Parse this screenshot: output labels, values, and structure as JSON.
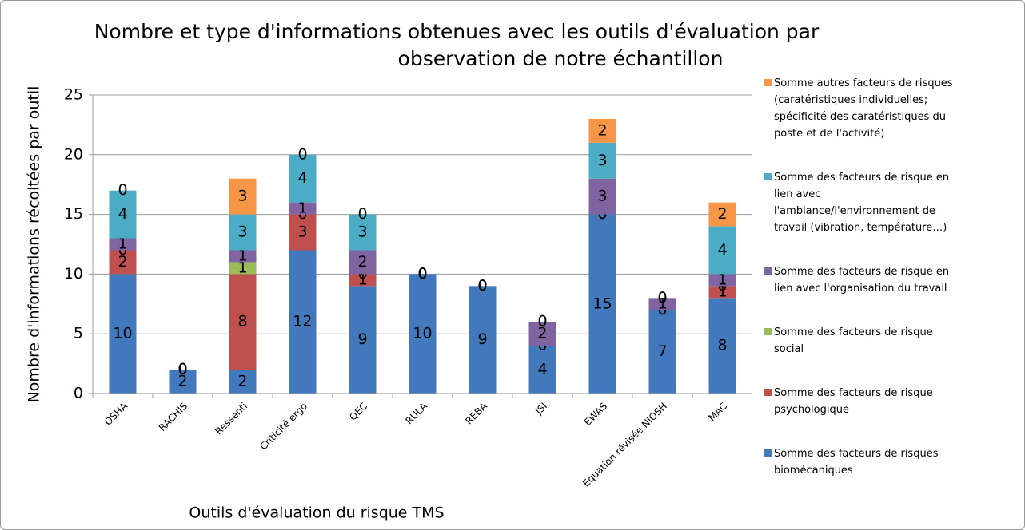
{
  "chart_data": {
    "type": "stacked_bar",
    "title": [
      "Nombre et type d'informations obtenues avec les outils d'évaluation par",
      "observation de notre échantillon"
    ],
    "x_label": "Outils d'évaluation du risque TMS",
    "y_label": "Nombre d'informations récoltées par outil",
    "categories": [
      "OSHA",
      "RACHIS",
      "Ressenti",
      "Criticité ergo",
      "QEC",
      "RULA",
      "REBA",
      "JSI",
      "EWAS",
      "Equation révisée NIOSH",
      "MAC"
    ],
    "series": [
      {
        "name": "Somme des facteurs de risques biomécaniques",
        "color": "#4279bd",
        "values": [
          10,
          2,
          2,
          12,
          9,
          10,
          9,
          4,
          15,
          7,
          8
        ]
      },
      {
        "name": "Somme des facteurs de risque psychologique",
        "color": "#c0504d",
        "values": [
          2,
          0,
          8,
          3,
          1,
          0,
          0,
          0,
          0,
          0,
          1
        ]
      },
      {
        "name": "Somme des facteurs de risque social",
        "color": "#9bbb59",
        "values": [
          0,
          0,
          1,
          0,
          0,
          0,
          0,
          0,
          0,
          0,
          0
        ]
      },
      {
        "name": "Somme des facteurs de risque en lien avec l'organisation du travail",
        "color": "#8064a2",
        "values": [
          1,
          0,
          1,
          1,
          2,
          0,
          0,
          2,
          3,
          1,
          1
        ]
      },
      {
        "name": "Somme des facteurs de risque en lien avec l'ambiance/l'environnement de travail (vibration, température…)",
        "color": "#4bacc6",
        "values": [
          4,
          0,
          3,
          4,
          3,
          0,
          0,
          0,
          3,
          0,
          4
        ]
      },
      {
        "name": "Somme autres facteurs de risques (caratéristiques individuelles; spécificité des caratéristiques du poste et de l'activité)",
        "color": "#f79646",
        "values": [
          0,
          0,
          3,
          0,
          0,
          0,
          0,
          0,
          2,
          0,
          2
        ]
      }
    ],
    "ylim": [
      0,
      25
    ],
    "yticks": [
      0,
      5,
      10,
      15,
      20,
      25
    ],
    "grid": true,
    "legend": "right"
  }
}
